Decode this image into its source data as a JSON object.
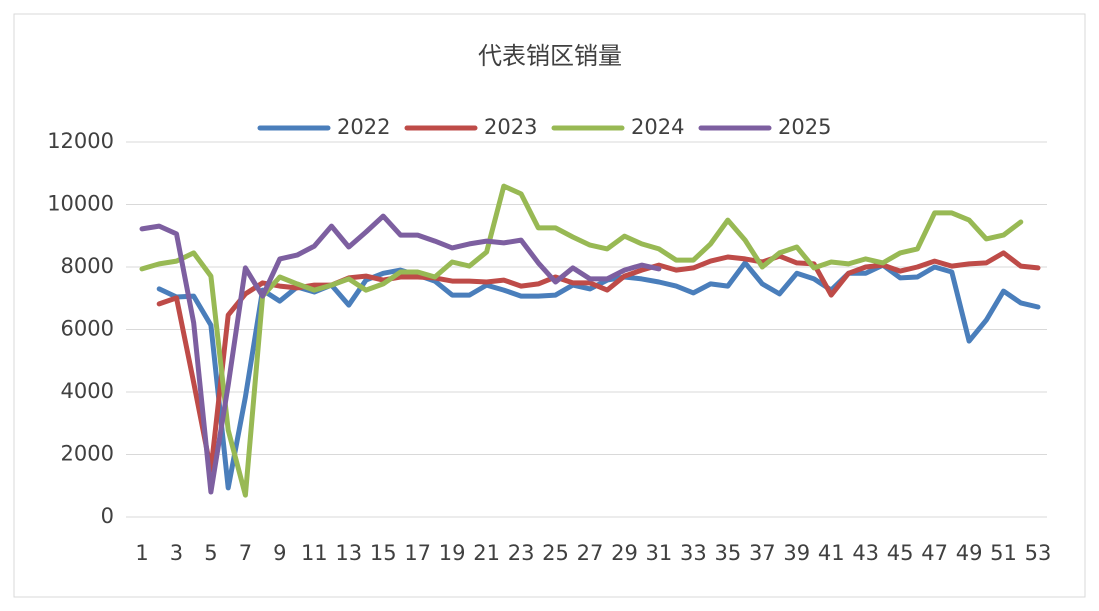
{
  "chart_data": {
    "type": "line",
    "title": "代表销区销量",
    "categories": [
      1,
      null,
      3,
      null,
      5,
      null,
      7,
      null,
      9,
      null,
      11,
      null,
      13,
      null,
      15,
      null,
      17,
      null,
      19,
      null,
      21,
      null,
      23,
      null,
      25,
      null,
      27,
      null,
      29,
      null,
      31,
      null,
      33,
      null,
      35,
      null,
      37,
      null,
      39,
      null,
      41,
      null,
      43,
      null,
      45,
      null,
      47,
      null,
      49,
      null,
      51,
      null,
      53
    ],
    "ylim": [
      0,
      12000
    ],
    "yticks": [
      0,
      2000,
      4000,
      6000,
      8000,
      10000,
      12000
    ],
    "grid": true,
    "legend": "top",
    "series": [
      {
        "name": "2022",
        "color": "#4a7ebb",
        "values": [
          null,
          7300,
          7040,
          7070,
          6140,
          930,
          3840,
          7260,
          6910,
          7360,
          7200,
          7420,
          6780,
          7580,
          7800,
          7900,
          7740,
          7550,
          7100,
          7100,
          7420,
          7260,
          7070,
          7070,
          7100,
          7420,
          7300,
          7580,
          7680,
          7620,
          7520,
          7390,
          7170,
          7460,
          7390,
          8130,
          7460,
          7140,
          7800,
          7620,
          7260,
          7800,
          7800,
          8060,
          7650,
          7680,
          8000,
          7840,
          5630,
          6300,
          7230,
          6850,
          6720
        ]
      },
      {
        "name": "2023",
        "color": "#be4b48",
        "values": [
          null,
          6820,
          7010,
          4300,
          1500,
          6460,
          7140,
          7490,
          7390,
          7330,
          7420,
          7420,
          7650,
          7710,
          7580,
          7680,
          7680,
          7650,
          7550,
          7550,
          7520,
          7580,
          7390,
          7460,
          7680,
          7490,
          7490,
          7260,
          7710,
          7900,
          8060,
          7900,
          7970,
          8190,
          8320,
          8260,
          8160,
          8350,
          8130,
          8100,
          7100,
          7800,
          8000,
          8060,
          7870,
          8000,
          8190,
          8030,
          8100,
          8130,
          8450,
          8030,
          7970
        ]
      },
      {
        "name": "2024",
        "color": "#98b954",
        "values": [
          7940,
          8100,
          8190,
          8450,
          7710,
          2780,
          700,
          7070,
          7680,
          7460,
          7260,
          7420,
          7620,
          7260,
          7460,
          7840,
          7840,
          7680,
          8160,
          8030,
          8480,
          10590,
          10340,
          9250,
          9250,
          8960,
          8700,
          8580,
          8990,
          8740,
          8580,
          8220,
          8220,
          8740,
          9500,
          8860,
          8000,
          8450,
          8640,
          7970,
          8160,
          8100,
          8260,
          8130,
          8450,
          8580,
          9730,
          9730,
          9500,
          8900,
          9020,
          9440,
          null
        ]
      },
      {
        "name": "2025",
        "color": "#7d5fa0",
        "values": [
          9220,
          9310,
          9060,
          6210,
          800,
          4220,
          7970,
          7070,
          8260,
          8380,
          8670,
          9310,
          8640,
          9120,
          9630,
          9020,
          9020,
          8830,
          8610,
          8740,
          8830,
          8770,
          8860,
          8130,
          7520,
          7970,
          7620,
          7620,
          7900,
          8060,
          7940,
          null,
          null,
          null,
          null,
          null,
          null,
          null,
          null,
          null,
          null,
          null,
          null,
          null,
          null,
          null,
          null,
          null,
          null,
          null,
          null,
          null,
          null
        ]
      }
    ]
  }
}
